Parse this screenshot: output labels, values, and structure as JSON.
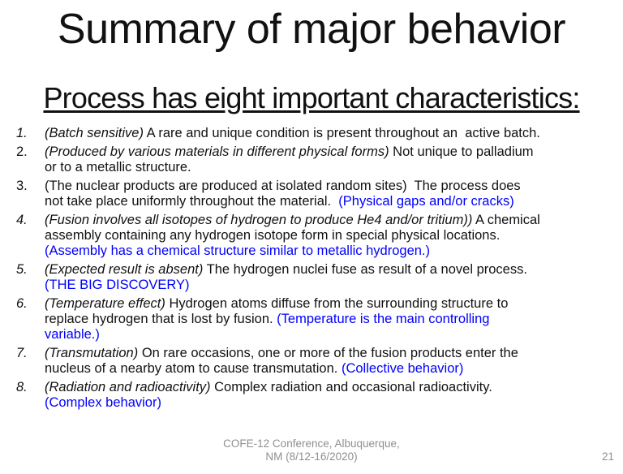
{
  "slide": {
    "title": "Summary of major behavior",
    "subtitle": "Process has eight important characteristics:",
    "colors": {
      "accent_blue": "#0000fd",
      "body_text": "#111111",
      "footer_gray": "#8f8f8f"
    },
    "list": [
      {
        "number": "1.",
        "number_italic": true,
        "segments": [
          {
            "text": "(Batch sensitive)",
            "italic": true,
            "blue": false
          },
          {
            "text": " A rare and unique condition is present throughout an  active batch.",
            "italic": false,
            "blue": false
          }
        ]
      },
      {
        "number": "2.",
        "number_italic": false,
        "segments": [
          {
            "text": "(Produced by various materials in different physical forms)",
            "italic": true,
            "blue": false
          },
          {
            "text": " Not unique to palladium\nor to a metallic structure.",
            "italic": false,
            "blue": false
          }
        ]
      },
      {
        "number": "3.",
        "number_italic": false,
        "segments": [
          {
            "text": "(The nuclear products are produced at isolated random sites)  The process does\nnot take place uniformly throughout the material.  ",
            "italic": false,
            "blue": false
          },
          {
            "text": "(Physical gaps and/or cracks)",
            "italic": false,
            "blue": true
          }
        ]
      },
      {
        "number": "4.",
        "number_italic": true,
        "segments": [
          {
            "text": "(Fusion involves all isotopes of hydrogen to produce He4 and/or tritium))",
            "italic": true,
            "blue": false
          },
          {
            "text": " A chemical\nassembly containing any hydrogen isotope form in special physical locations.\n",
            "italic": false,
            "blue": false
          },
          {
            "text": "(Assembly has a chemical structure similar to metallic hydrogen.)",
            "italic": false,
            "blue": true
          }
        ]
      },
      {
        "number": "5.",
        "number_italic": true,
        "segments": [
          {
            "text": "(Expected result is absent)",
            "italic": true,
            "blue": false
          },
          {
            "text": " The hydrogen nuclei fuse as result of a novel process.\n",
            "italic": false,
            "blue": false
          },
          {
            "text": "(THE BIG DISCOVERY)",
            "italic": false,
            "blue": true
          }
        ]
      },
      {
        "number": "6.",
        "number_italic": true,
        "segments": [
          {
            "text": "(Temperature effect)",
            "italic": true,
            "blue": false
          },
          {
            "text": " Hydrogen atoms diffuse from the surrounding structure to\nreplace hydrogen that is lost by fusion. ",
            "italic": false,
            "blue": false
          },
          {
            "text": "(Temperature is the main controlling\nvariable.)",
            "italic": false,
            "blue": true
          }
        ]
      },
      {
        "number": "7.",
        "number_italic": true,
        "segments": [
          {
            "text": "(Transmutation)",
            "italic": true,
            "blue": false
          },
          {
            "text": " On rare occasions, one or more of the fusion products enter the\nnucleus of a nearby atom to cause transmutation. ",
            "italic": false,
            "blue": false
          },
          {
            "text": "(Collective behavior)",
            "italic": false,
            "blue": true
          }
        ]
      },
      {
        "number": "8.",
        "number_italic": true,
        "segments": [
          {
            "text": "(Radiation and radioactivity)",
            "italic": true,
            "blue": false
          },
          {
            "text": " Complex radiation and occasional radioactivity.\n",
            "italic": false,
            "blue": false
          },
          {
            "text": "(Complex behavior)",
            "italic": false,
            "blue": true
          }
        ]
      }
    ],
    "footer": {
      "line1": "COFE-12 Conference, Albuquerque,",
      "line2": "NM (8/12-16/2020)",
      "page_number": "21"
    }
  }
}
